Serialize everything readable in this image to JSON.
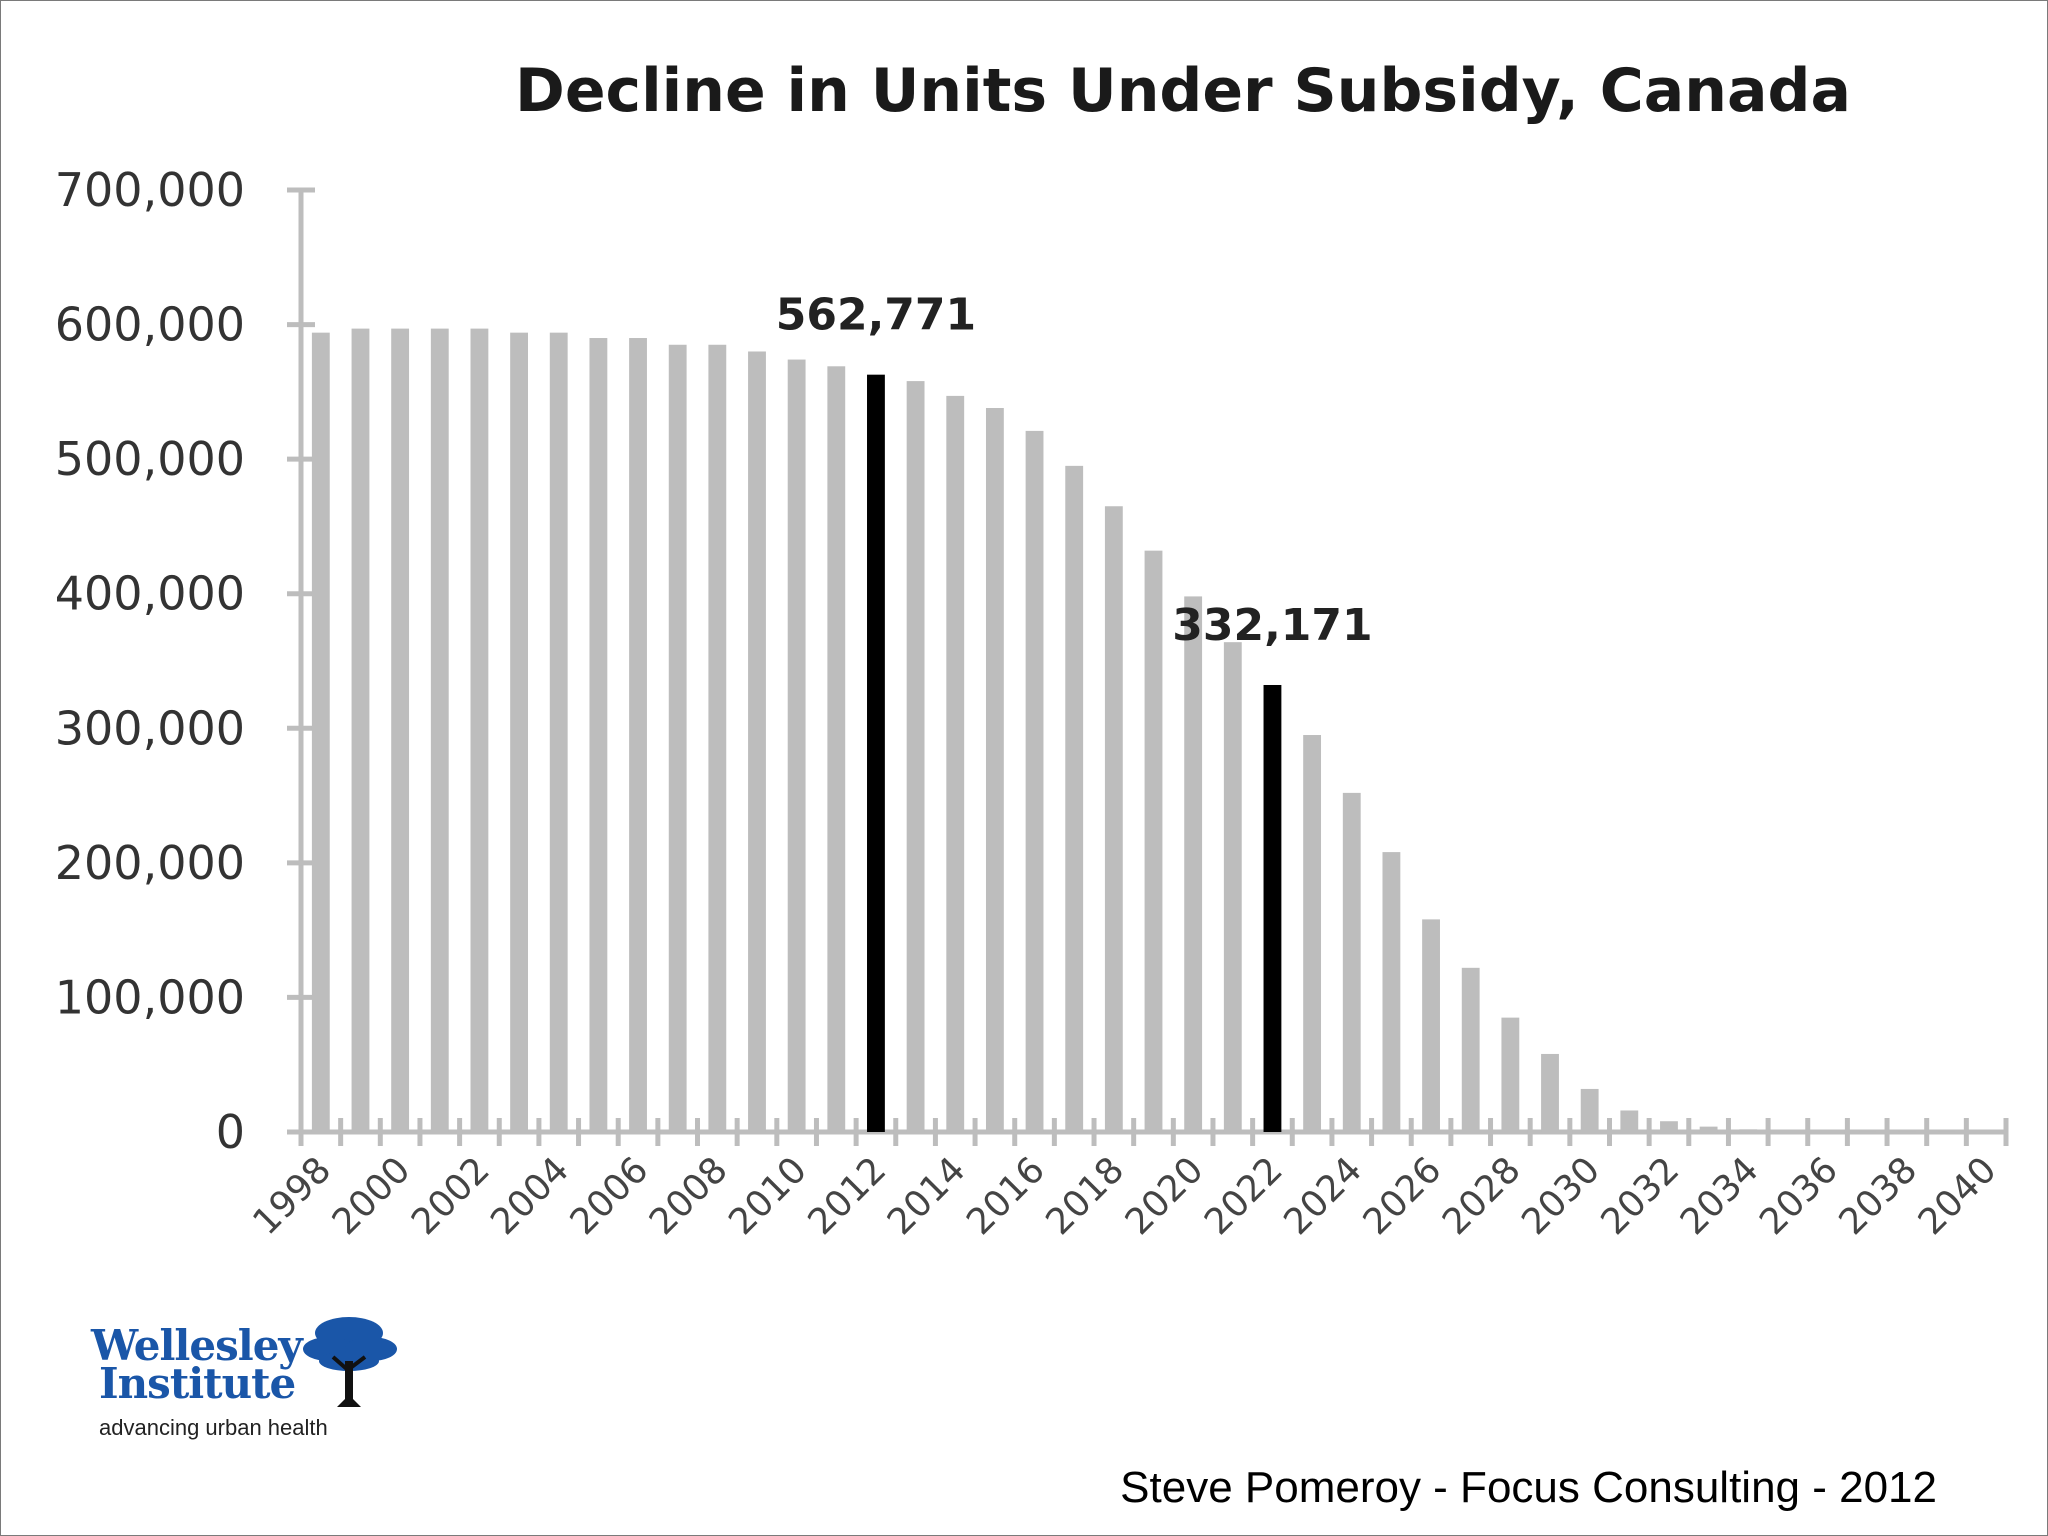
{
  "chart_data": {
    "type": "bar",
    "title": "Decline in Units Under Subsidy, Canada",
    "xlabel": "",
    "ylabel": "",
    "ylim": [
      0,
      700000
    ],
    "yticks": [
      0,
      100000,
      200000,
      300000,
      400000,
      500000,
      600000,
      700000
    ],
    "ytick_labels": [
      "0",
      "100,000",
      "200,000",
      "300,000",
      "400,000",
      "500,000",
      "600,000",
      "700,000"
    ],
    "xtick_labels": [
      "1998",
      "2000",
      "2002",
      "2004",
      "2006",
      "2008",
      "2010",
      "2012",
      "2014",
      "2016",
      "2018",
      "2020",
      "2022",
      "2024",
      "2026",
      "2028",
      "2030",
      "2032",
      "2034",
      "2036",
      "2038",
      "2040"
    ],
    "categories": [
      "1998",
      "1999",
      "2000",
      "2001",
      "2002",
      "2003",
      "2004",
      "2005",
      "2006",
      "2007",
      "2008",
      "2009",
      "2010",
      "2011",
      "2012",
      "2013",
      "2014",
      "2015",
      "2016",
      "2017",
      "2018",
      "2019",
      "2020",
      "2021",
      "2022",
      "2023",
      "2024",
      "2025",
      "2026",
      "2027",
      "2028",
      "2029",
      "2030",
      "2031",
      "2032",
      "2033",
      "2034",
      "2035",
      "2036",
      "2037",
      "2038",
      "2039",
      "2040"
    ],
    "values": [
      594000,
      597000,
      597000,
      597000,
      597000,
      594000,
      594000,
      590000,
      590000,
      585000,
      585000,
      580000,
      574000,
      569000,
      562771,
      558000,
      547000,
      538000,
      521000,
      495000,
      465000,
      432000,
      398000,
      364000,
      332171,
      295000,
      252000,
      208000,
      158000,
      122000,
      85000,
      58000,
      32000,
      16000,
      8000,
      4000,
      2000,
      1000,
      500,
      300,
      200,
      100,
      50
    ],
    "highlight": {
      "2012": "562,771",
      "2022": "332,171"
    },
    "bar_color": "#bdbdbd",
    "highlight_color": "#000000",
    "grid": false,
    "legend": "none"
  },
  "logo": {
    "name_line1": "Wellesley",
    "name_line2": "Institute",
    "tagline": "advancing urban health",
    "brand_color": "#1a56a8"
  },
  "credit": "Steve Pomeroy - Focus Consulting - 2012"
}
